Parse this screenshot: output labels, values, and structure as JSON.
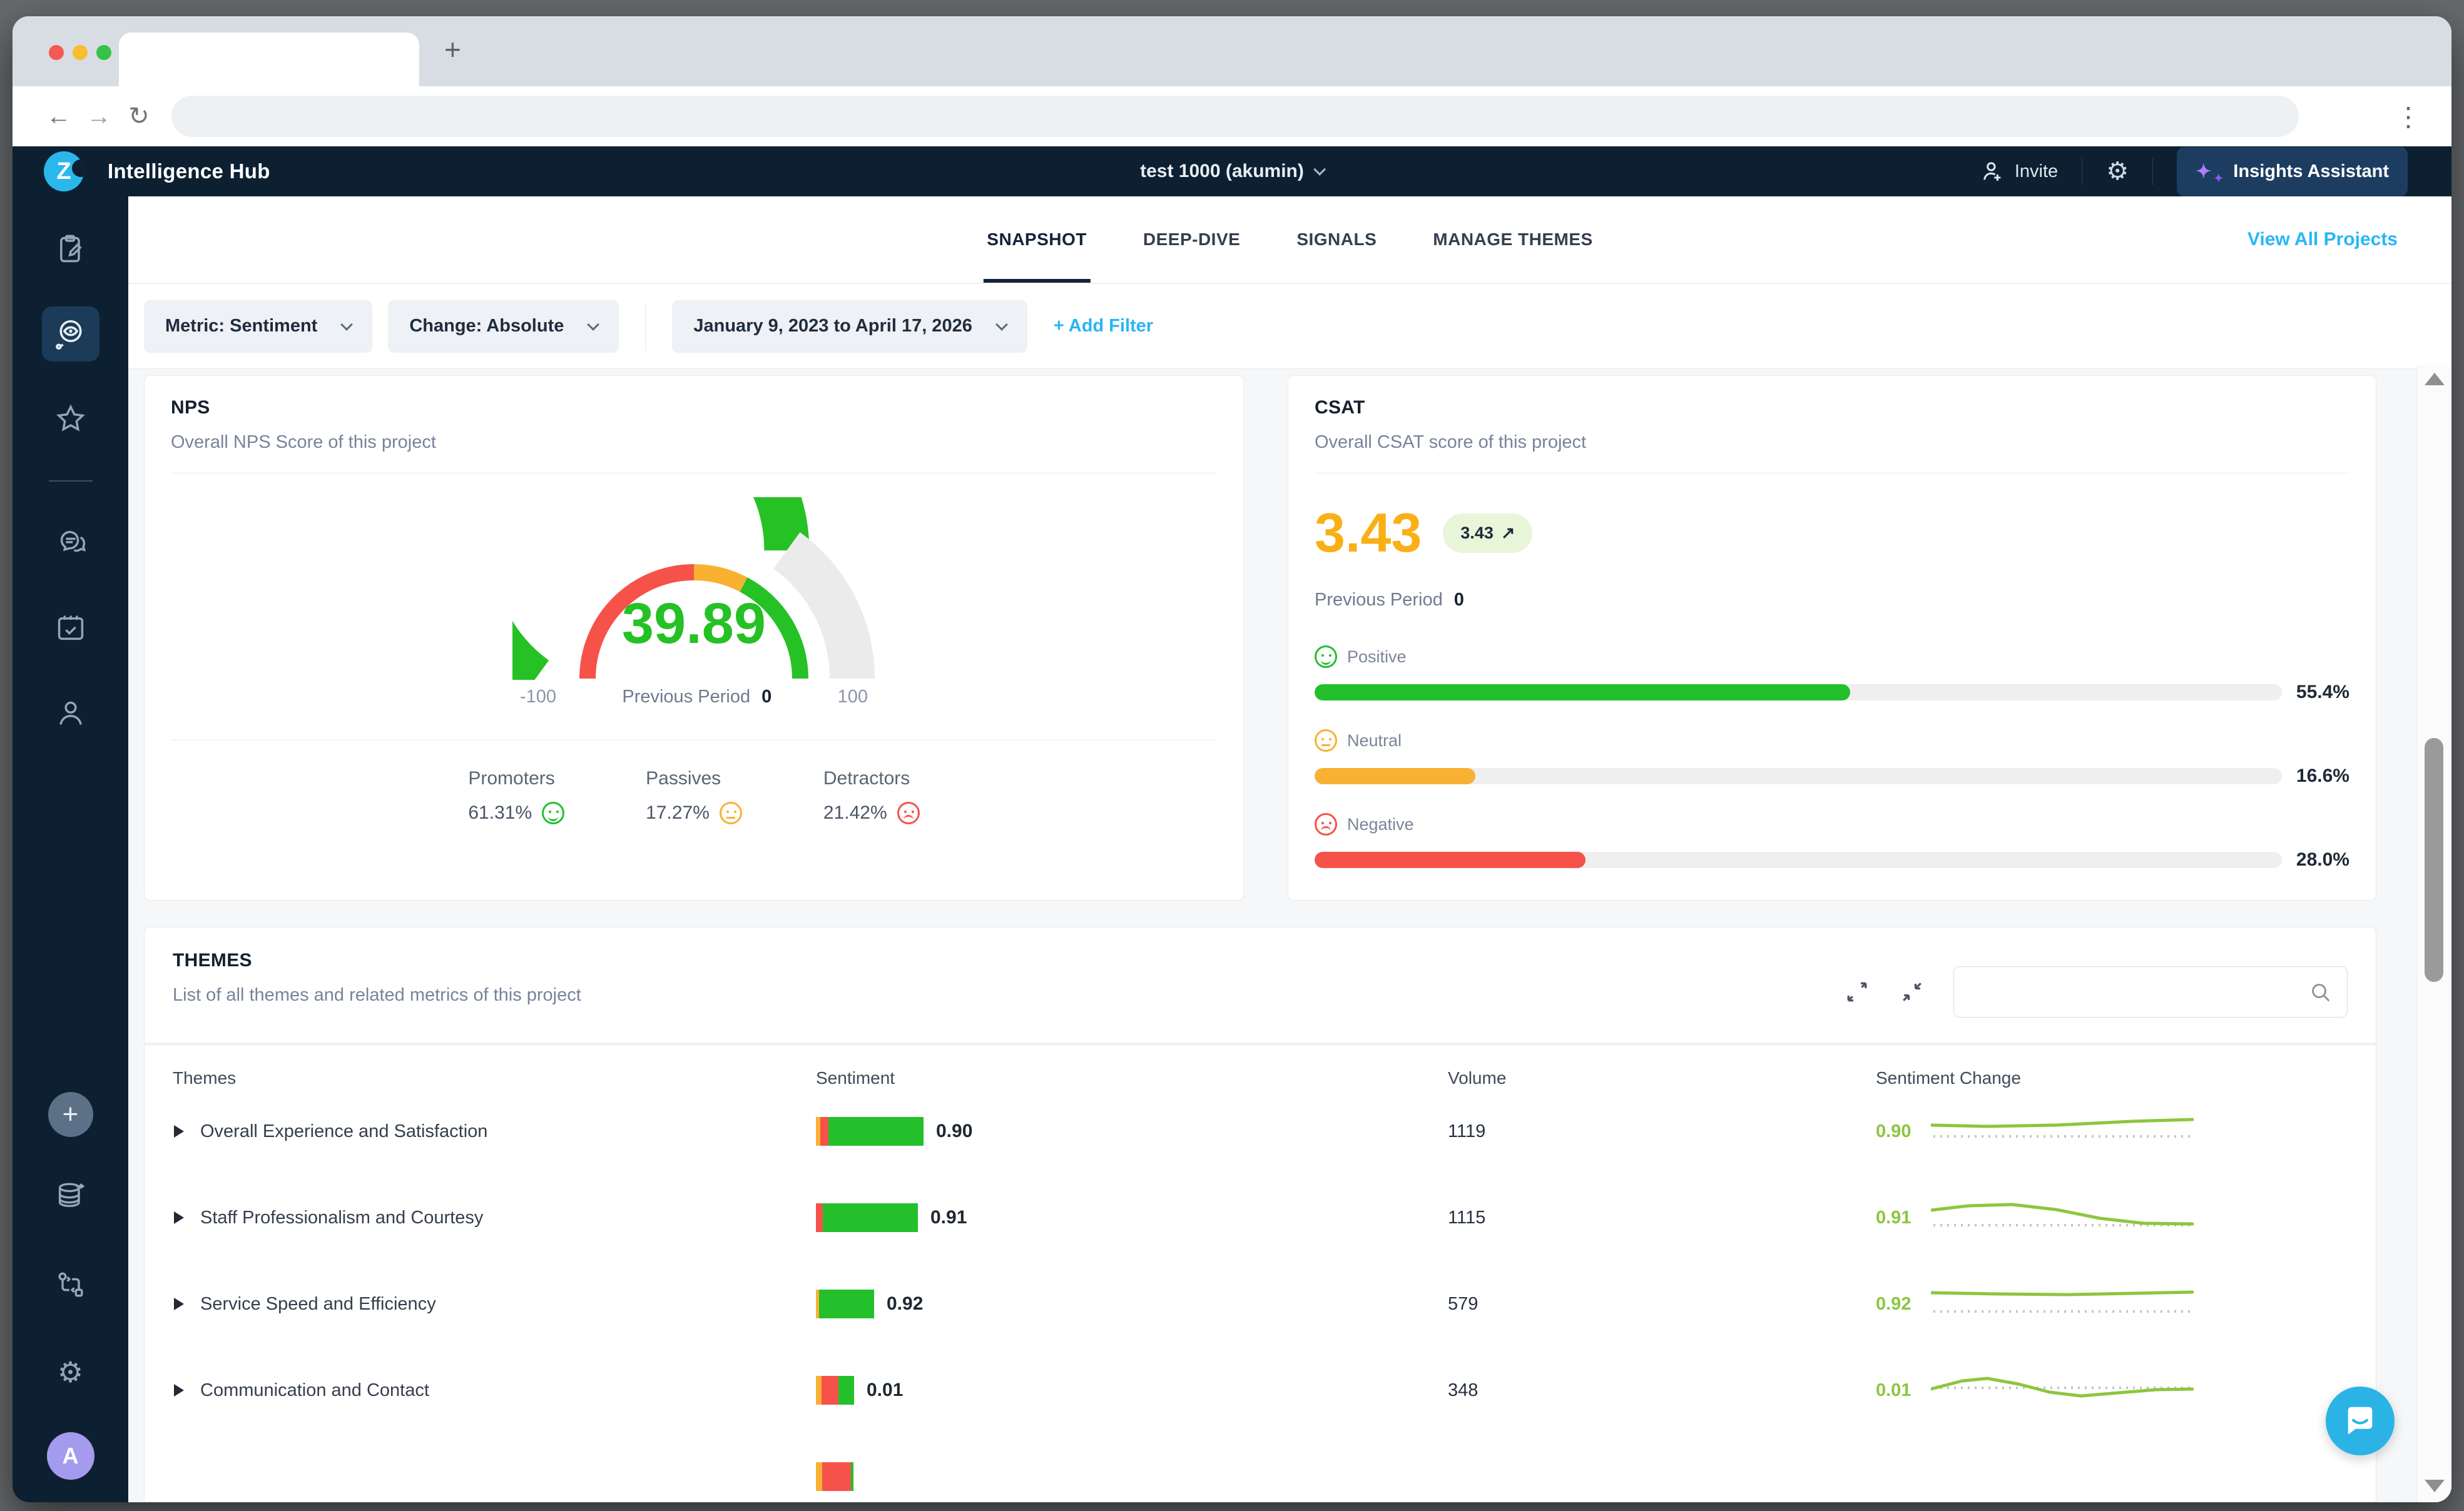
{
  "browser": {
    "new_tab": "+",
    "back": "←",
    "forward": "→",
    "reload": "↻",
    "menu": "⋮"
  },
  "appbar": {
    "logo_letter": "Z",
    "title": "Intelligence Hub",
    "project": "test 1000 (akumin)",
    "invite": "Invite",
    "gear": "⚙",
    "assistant": "Insights Assistant",
    "sparkle_big": "✦",
    "sparkle_small": "✦"
  },
  "sidebar": {
    "plus": "+",
    "gear": "⚙",
    "avatar_letter": "A"
  },
  "tabs": [
    {
      "label": "SNAPSHOT",
      "active": true
    },
    {
      "label": "DEEP-DIVE",
      "active": false
    },
    {
      "label": "SIGNALS",
      "active": false
    },
    {
      "label": "MANAGE THEMES",
      "active": false
    }
  ],
  "view_all": "View All Projects",
  "filters": {
    "metric": "Metric: Sentiment",
    "change": "Change: Absolute",
    "date": "January 9, 2023 to April 17, 2026",
    "add": "+ Add Filter"
  },
  "nps": {
    "title": "NPS",
    "subtitle": "Overall NPS Score of this project",
    "value": "39.89",
    "min": "-100",
    "max": "100",
    "prev_label": "Previous Period",
    "prev_value": "0",
    "fraction": 0.6995,
    "outer_bands": [
      {
        "color": "#25c125",
        "from": 0,
        "to": 0.6995
      },
      {
        "color": "#ebebeb",
        "from": 0.6995,
        "to": 1
      }
    ],
    "inner_bands": [
      {
        "color": "#f6524a",
        "from": 0,
        "to": 0.5
      },
      {
        "color": "#f8b133",
        "from": 0.5,
        "to": 0.655
      },
      {
        "color": "#25c125",
        "from": 0.655,
        "to": 1
      }
    ],
    "breakdown": [
      {
        "label": "Promoters",
        "value": "61.31%",
        "mood": "good"
      },
      {
        "label": "Passives",
        "value": "17.27%",
        "mood": "neutral"
      },
      {
        "label": "Detractors",
        "value": "21.42%",
        "mood": "bad"
      }
    ]
  },
  "csat": {
    "title": "CSAT",
    "subtitle": "Overall CSAT score of this project",
    "score": "3.43",
    "badge_value": "3.43",
    "trend": "↗",
    "prev_label": "Previous Period",
    "prev_value": "0",
    "bars": [
      {
        "label": "Positive",
        "mood": "good",
        "pct": "55.4%",
        "frac": 0.554,
        "color": "#23c02c"
      },
      {
        "label": "Neutral",
        "mood": "neutral",
        "pct": "16.6%",
        "frac": 0.166,
        "color": "#f8b133"
      },
      {
        "label": "Negative",
        "mood": "bad",
        "pct": "28.0%",
        "frac": 0.28,
        "color": "#f6524a"
      }
    ]
  },
  "themes": {
    "title": "THEMES",
    "subtitle": "List of all themes and related metrics of this project",
    "search_placeholder": "",
    "columns": [
      "Themes",
      "Sentiment",
      "Volume",
      "Sentiment Change"
    ],
    "spark_color": "#8cc63f",
    "rows": [
      {
        "name": "Overall Experience and Satisfaction",
        "segments": [
          [
            "#f8b133",
            7
          ],
          [
            "#f6524a",
            13
          ],
          [
            "#23c02c",
            152
          ]
        ],
        "sentiment": "0.90",
        "volume": "1119",
        "change": "0.90",
        "spark": {
          "base": 40,
          "line": [
            [
              0,
              22
            ],
            [
              90,
              24
            ],
            [
              200,
              22
            ],
            [
              320,
              16
            ],
            [
              418,
              13
            ]
          ]
        }
      },
      {
        "name": "Staff Professionalism and Courtesy",
        "segments": [
          [
            "#f6524a",
            11
          ],
          [
            "#23c02c",
            152
          ]
        ],
        "sentiment": "0.91",
        "volume": "1115",
        "change": "0.91",
        "spark": {
          "base": 44,
          "line": [
            [
              0,
              20
            ],
            [
              60,
              13
            ],
            [
              130,
              11
            ],
            [
              200,
              19
            ],
            [
              270,
              33
            ],
            [
              340,
              41
            ],
            [
              418,
              42
            ]
          ]
        }
      },
      {
        "name": "Service Speed and Efficiency",
        "segments": [
          [
            "#f8b133",
            5
          ],
          [
            "#23c02c",
            88
          ]
        ],
        "sentiment": "0.92",
        "volume": "579",
        "change": "0.92",
        "spark": {
          "base": 44,
          "line": [
            [
              0,
              14
            ],
            [
              110,
              16
            ],
            [
              220,
              17
            ],
            [
              320,
              15
            ],
            [
              418,
              13
            ]
          ]
        }
      },
      {
        "name": "Communication and Contact",
        "segments": [
          [
            "#f8b133",
            9
          ],
          [
            "#f6524a",
            27
          ],
          [
            "#23c02c",
            25
          ]
        ],
        "sentiment": "0.01",
        "volume": "348",
        "change": "0.01",
        "spark": {
          "base": 28,
          "line": [
            [
              0,
              30
            ],
            [
              50,
              17
            ],
            [
              90,
              13
            ],
            [
              140,
              22
            ],
            [
              190,
              35
            ],
            [
              240,
              41
            ],
            [
              300,
              36
            ],
            [
              360,
              31
            ],
            [
              418,
              30
            ]
          ]
        }
      },
      {
        "name": "",
        "segments": [
          [
            "#f8b133",
            10
          ],
          [
            "#f6524a",
            46
          ],
          [
            "#23c02c",
            4
          ]
        ],
        "sentiment": "",
        "volume": "",
        "change": "",
        "spark": null
      }
    ]
  }
}
